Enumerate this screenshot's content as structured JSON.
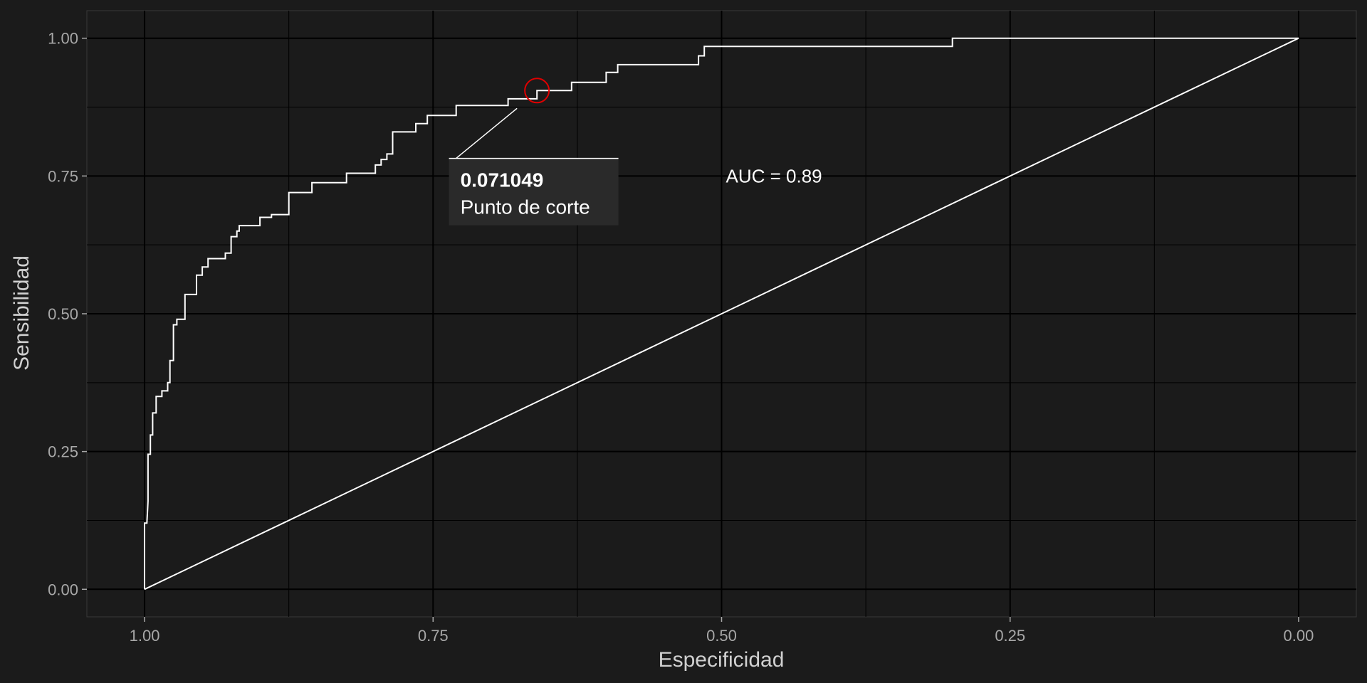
{
  "chart_data": {
    "type": "line",
    "title": "",
    "xlabel": "Especificidad",
    "ylabel": "Sensibilidad",
    "x_reversed": true,
    "xlim": [
      1.05,
      -0.05
    ],
    "ylim": [
      -0.05,
      1.05
    ],
    "x_ticks": [
      "1.00",
      "0.75",
      "0.50",
      "0.25",
      "0.00"
    ],
    "y_ticks": [
      "0.00",
      "0.25",
      "0.50",
      "0.75",
      "1.00"
    ],
    "grid": true,
    "colors": {
      "background": "#1b1b1b",
      "panel": "#1b1b1b",
      "grid": "#000000",
      "line": "#ffffff",
      "marker": "#e00000"
    },
    "series": [
      {
        "x": [
          1.0,
          1.0,
          0.998,
          0.997,
          0.997,
          0.995,
          0.995,
          0.993,
          0.993,
          0.99,
          0.99,
          0.985,
          0.985,
          0.98,
          0.98,
          0.978,
          0.978,
          0.975,
          0.975,
          0.972,
          0.972,
          0.97,
          0.97,
          0.965,
          0.965,
          0.955,
          0.955,
          0.95,
          0.95,
          0.945,
          0.945,
          0.93,
          0.93,
          0.925,
          0.925,
          0.92,
          0.92,
          0.918,
          0.918,
          0.915,
          0.915,
          0.9,
          0.9,
          0.89,
          0.89,
          0.875,
          0.875,
          0.873,
          0.873,
          0.855,
          0.855,
          0.84,
          0.84,
          0.825,
          0.825,
          0.81,
          0.81,
          0.8,
          0.8,
          0.795,
          0.795,
          0.79,
          0.79,
          0.785,
          0.785,
          0.78,
          0.78,
          0.765,
          0.765,
          0.755,
          0.755,
          0.75,
          0.75,
          0.73,
          0.73,
          0.71,
          0.71,
          0.685,
          0.685,
          0.662,
          0.662,
          0.66,
          0.66,
          0.63,
          0.63,
          0.6,
          0.6,
          0.59,
          0.59,
          0.52,
          0.52,
          0.515,
          0.515,
          0.51,
          0.51,
          0.3,
          0.3,
          0.29,
          0.0
        ],
        "y": [
          0.0,
          0.12,
          0.12,
          0.16,
          0.245,
          0.245,
          0.28,
          0.28,
          0.32,
          0.32,
          0.35,
          0.35,
          0.36,
          0.36,
          0.375,
          0.375,
          0.415,
          0.415,
          0.48,
          0.48,
          0.49,
          0.49,
          0.49,
          0.49,
          0.535,
          0.535,
          0.57,
          0.57,
          0.585,
          0.585,
          0.6,
          0.6,
          0.61,
          0.61,
          0.64,
          0.64,
          0.65,
          0.65,
          0.66,
          0.66,
          0.66,
          0.66,
          0.675,
          0.675,
          0.68,
          0.68,
          0.72,
          0.72,
          0.72,
          0.72,
          0.738,
          0.738,
          0.738,
          0.738,
          0.755,
          0.755,
          0.755,
          0.755,
          0.77,
          0.77,
          0.78,
          0.78,
          0.79,
          0.79,
          0.83,
          0.83,
          0.83,
          0.83,
          0.845,
          0.845,
          0.86,
          0.86,
          0.86,
          0.86,
          0.878,
          0.878,
          0.878,
          0.878,
          0.89,
          0.89,
          0.89,
          0.89,
          0.905,
          0.905,
          0.92,
          0.92,
          0.938,
          0.938,
          0.952,
          0.952,
          0.968,
          0.968,
          0.985,
          0.985,
          0.985,
          0.985,
          1.0,
          1.0,
          1.0
        ]
      },
      {
        "x": [
          1.0,
          0.0
        ],
        "y": [
          0.0,
          1.0
        ]
      }
    ],
    "highlight_point": {
      "x": 0.66,
      "y": 0.905
    },
    "annotations": [
      {
        "text": "AUC = 0.89",
        "x": 0.5,
        "y": 0.75
      }
    ],
    "cutoff_label": {
      "value": "0.071049",
      "text": "Punto de corte",
      "x": 0.735,
      "y": 0.72
    }
  }
}
